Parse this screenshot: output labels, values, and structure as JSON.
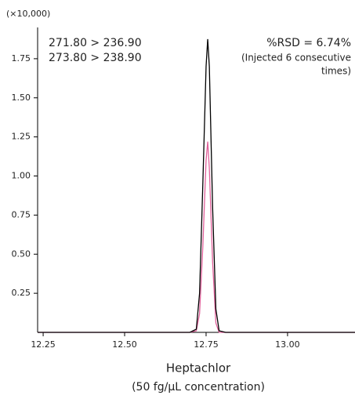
{
  "chart_data": {
    "type": "line",
    "title": "Heptachlor",
    "subtitle": "(50 fg/µL concentration)",
    "y_unit_label": "(×10,000)",
    "annotations": [
      "%RSD = 6.74%",
      "(Injected 6 consecutive",
      "times)"
    ],
    "x": [
      12.233,
      12.7,
      12.72,
      12.73,
      12.74,
      12.75,
      12.755,
      12.76,
      12.77,
      12.78,
      12.79,
      12.81,
      13.207
    ],
    "series": [
      {
        "name": "271.80 > 236.90",
        "color": "#000000",
        "values": [
          0,
          0,
          0.02,
          0.25,
          0.95,
          1.7,
          1.875,
          1.7,
          0.8,
          0.15,
          0.01,
          0,
          0
        ]
      },
      {
        "name": "273.80 > 238.90",
        "color": "#e0609a",
        "values": [
          0,
          0,
          0.01,
          0.12,
          0.55,
          1.1,
          1.22,
          1.05,
          0.45,
          0.06,
          0,
          0,
          0
        ]
      }
    ],
    "xlim": [
      12.233,
      13.207
    ],
    "ylim": [
      0,
      1.95
    ],
    "xticks": [
      12.25,
      {
        "value": 12.5,
        "label": "12.50"
      },
      12.75,
      {
        "value": 13,
        "label": "13.00"
      }
    ],
    "yticks": [
      0.25,
      {
        "value": 0.5,
        "label": "0.50"
      },
      0.75,
      {
        "value": 1,
        "label": "1.00"
      },
      1.25,
      {
        "value": 1.5,
        "label": "1.50"
      },
      1.75
    ],
    "legend": "top-left",
    "grid": false
  }
}
